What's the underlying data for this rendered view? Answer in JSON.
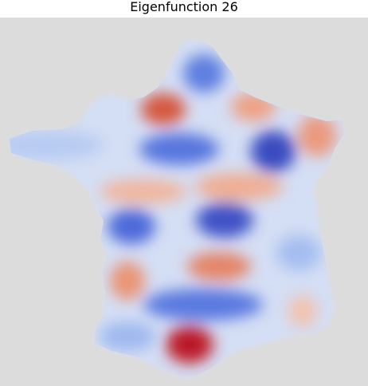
{
  "figure": {
    "title": "Eigenfunction 26"
  },
  "colors": {
    "background": "#dcdcdc",
    "map_base": "#d4def4",
    "blue_light": "#aac1f0",
    "blue_mid": "#6d8fe6",
    "blue_deep": "#3a4cc0",
    "red_light": "#f1b79b",
    "red_mid": "#e06e56",
    "red_deep": "#b40426"
  }
}
